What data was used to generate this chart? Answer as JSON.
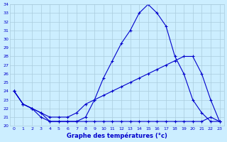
{
  "title": "Graphe des températures (°c)",
  "bg_color": "#cceeff",
  "grid_color": "#aaccdd",
  "line_color": "#0000cc",
  "x_labels": [
    "0",
    "1",
    "2",
    "3",
    "4",
    "5",
    "6",
    "7",
    "8",
    "9",
    "10",
    "11",
    "12",
    "13",
    "14",
    "15",
    "16",
    "17",
    "18",
    "19",
    "20",
    "21",
    "22",
    "23"
  ],
  "ylim": [
    20,
    34
  ],
  "yticks": [
    20,
    21,
    22,
    23,
    24,
    25,
    26,
    27,
    28,
    29,
    30,
    31,
    32,
    33,
    34
  ],
  "line1_x": [
    0,
    1,
    2,
    3,
    4,
    5,
    6,
    7,
    8,
    9,
    10,
    11,
    12,
    13,
    14,
    15,
    16,
    17,
    18,
    19,
    20,
    21,
    22,
    23
  ],
  "line1_y": [
    24,
    22.5,
    22,
    21,
    20.5,
    20.5,
    20.5,
    20.5,
    21,
    23,
    25.5,
    27.5,
    29.5,
    31,
    33,
    34,
    33,
    31.5,
    28,
    26,
    23,
    21.5,
    20.5,
    20.5
  ],
  "line2_x": [
    0,
    1,
    2,
    3,
    4,
    5,
    6,
    7,
    8,
    9,
    10,
    11,
    12,
    13,
    14,
    15,
    16,
    17,
    18,
    19,
    20,
    21,
    22,
    23
  ],
  "line2_y": [
    24,
    22.5,
    22,
    21.5,
    21,
    21,
    21,
    21.5,
    22.5,
    23,
    23.5,
    24,
    24.5,
    25,
    25.5,
    26,
    26.5,
    27,
    27.5,
    28,
    28,
    26,
    23,
    20.5
  ],
  "line3_x": [
    0,
    1,
    2,
    3,
    4,
    5,
    6,
    7,
    8,
    9,
    10,
    11,
    12,
    13,
    14,
    15,
    16,
    17,
    18,
    19,
    20,
    21,
    22,
    23
  ],
  "line3_y": [
    24,
    22.5,
    22,
    21.5,
    20.5,
    20.5,
    20.5,
    20.5,
    20.5,
    20.5,
    20.5,
    20.5,
    20.5,
    20.5,
    20.5,
    20.5,
    20.5,
    20.5,
    20.5,
    20.5,
    20.5,
    20.5,
    21,
    20.5
  ]
}
